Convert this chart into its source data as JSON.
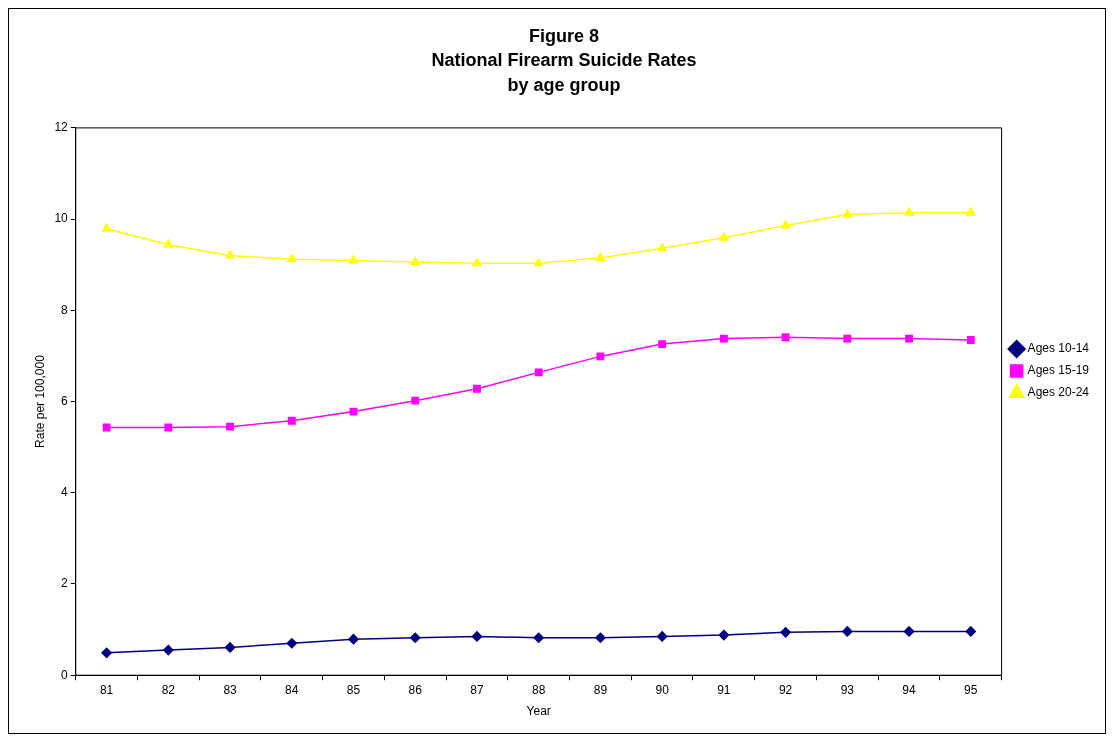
{
  "chart_data": {
    "type": "line",
    "title": "Figure 8\nNational Firearm Suicide Rates\nby age group",
    "xlabel": "Year",
    "ylabel": "Rate per 100,000",
    "categories": [
      "81",
      "82",
      "83",
      "84",
      "85",
      "86",
      "87",
      "88",
      "89",
      "90",
      "91",
      "92",
      "93",
      "94",
      "95"
    ],
    "series": [
      {
        "name": "Ages 10-14",
        "color": "#000080",
        "marker": "diamond",
        "values": [
          0.49,
          0.55,
          0.61,
          0.7,
          0.79,
          0.82,
          0.85,
          0.82,
          0.82,
          0.85,
          0.88,
          0.94,
          0.96,
          0.96,
          0.96
        ]
      },
      {
        "name": "Ages 15-19",
        "color": "#ff00ff",
        "marker": "square",
        "values": [
          5.43,
          5.43,
          5.45,
          5.58,
          5.78,
          6.02,
          6.28,
          6.64,
          6.99,
          7.26,
          7.38,
          7.41,
          7.38,
          7.38,
          7.35
        ]
      },
      {
        "name": "Ages 20-24",
        "color": "#ffff00",
        "marker": "triangle",
        "values": [
          9.79,
          9.44,
          9.2,
          9.12,
          9.09,
          9.06,
          9.03,
          9.03,
          9.15,
          9.36,
          9.59,
          9.86,
          10.1,
          10.14,
          10.14
        ]
      }
    ],
    "ylim": [
      0,
      12
    ],
    "yticks": [
      0,
      2,
      4,
      6,
      8,
      10,
      12
    ],
    "grid": false,
    "legend": "right",
    "line_style": "solid"
  }
}
